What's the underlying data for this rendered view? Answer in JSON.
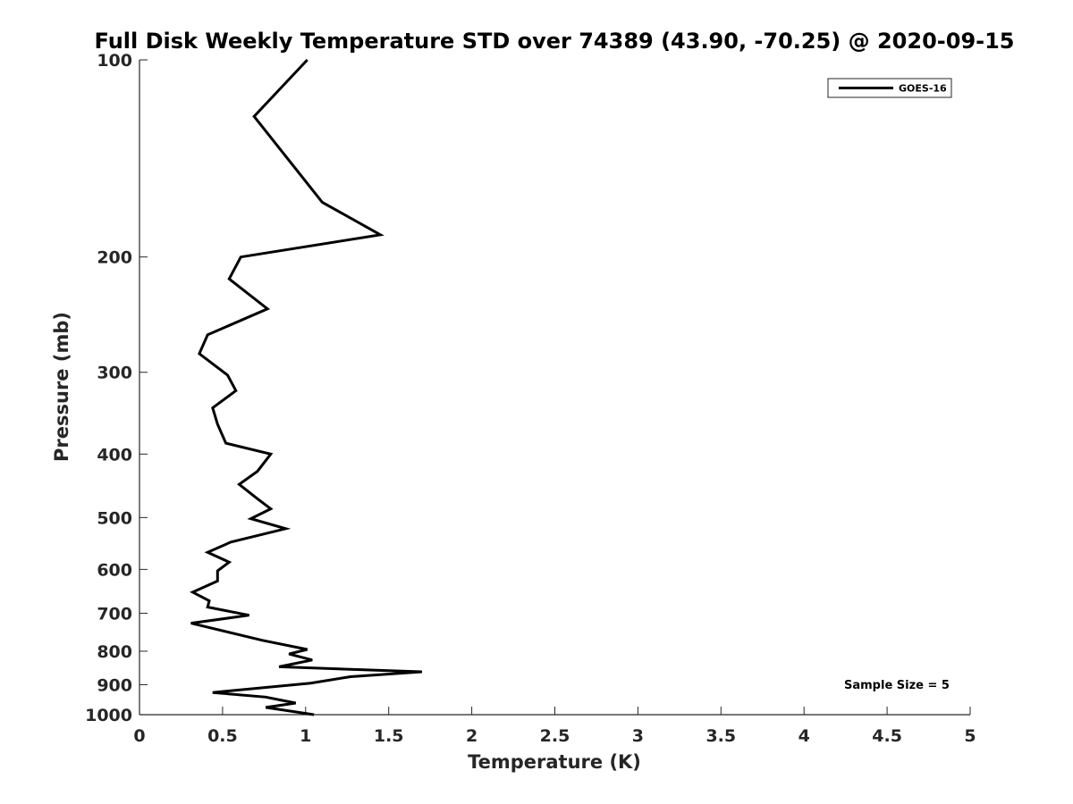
{
  "chart_data": {
    "type": "line",
    "title": "Full Disk Weekly Temperature STD over 74389 (43.90, -70.25) @ 2020-09-15",
    "xlabel": "Temperature (K)",
    "ylabel": "Pressure (mb)",
    "xlim": [
      0,
      5
    ],
    "ylim": [
      100,
      1000
    ],
    "y_scale": "log",
    "y_reversed": true,
    "x_ticks": [
      "0",
      "0.5",
      "1",
      "1.5",
      "2",
      "2.5",
      "3",
      "3.5",
      "4",
      "4.5",
      "5"
    ],
    "y_ticks": [
      "100",
      "200",
      "300",
      "400",
      "500",
      "600",
      "700",
      "800",
      "900",
      "1000"
    ],
    "grid": false,
    "legend_position": "top-right",
    "annotation": "Sample Size = 5",
    "series": [
      {
        "name": "GOES-16",
        "color": "#000000",
        "x": [
          1.01,
          0.69,
          1.1,
          1.45,
          0.61,
          0.54,
          0.77,
          0.41,
          0.36,
          0.53,
          0.58,
          0.44,
          0.47,
          0.52,
          0.79,
          0.71,
          0.6,
          0.71,
          0.79,
          0.67,
          0.88,
          0.55,
          0.41,
          0.54,
          0.47,
          0.47,
          0.32,
          0.42,
          0.41,
          0.66,
          0.31,
          0.74,
          1.01,
          0.9,
          1.04,
          0.84,
          1.7,
          1.27,
          1.03,
          0.44,
          0.76,
          0.94,
          0.76,
          1.05
        ],
        "y": [
          100,
          122,
          165,
          185,
          200,
          216,
          240,
          263,
          281,
          303,
          320,
          340,
          360,
          385,
          400,
          425,
          445,
          468,
          485,
          502,
          520,
          545,
          565,
          585,
          603,
          625,
          650,
          670,
          685,
          705,
          725,
          770,
          795,
          808,
          825,
          845,
          860,
          875,
          895,
          925,
          940,
          960,
          975,
          1000
        ]
      }
    ]
  }
}
